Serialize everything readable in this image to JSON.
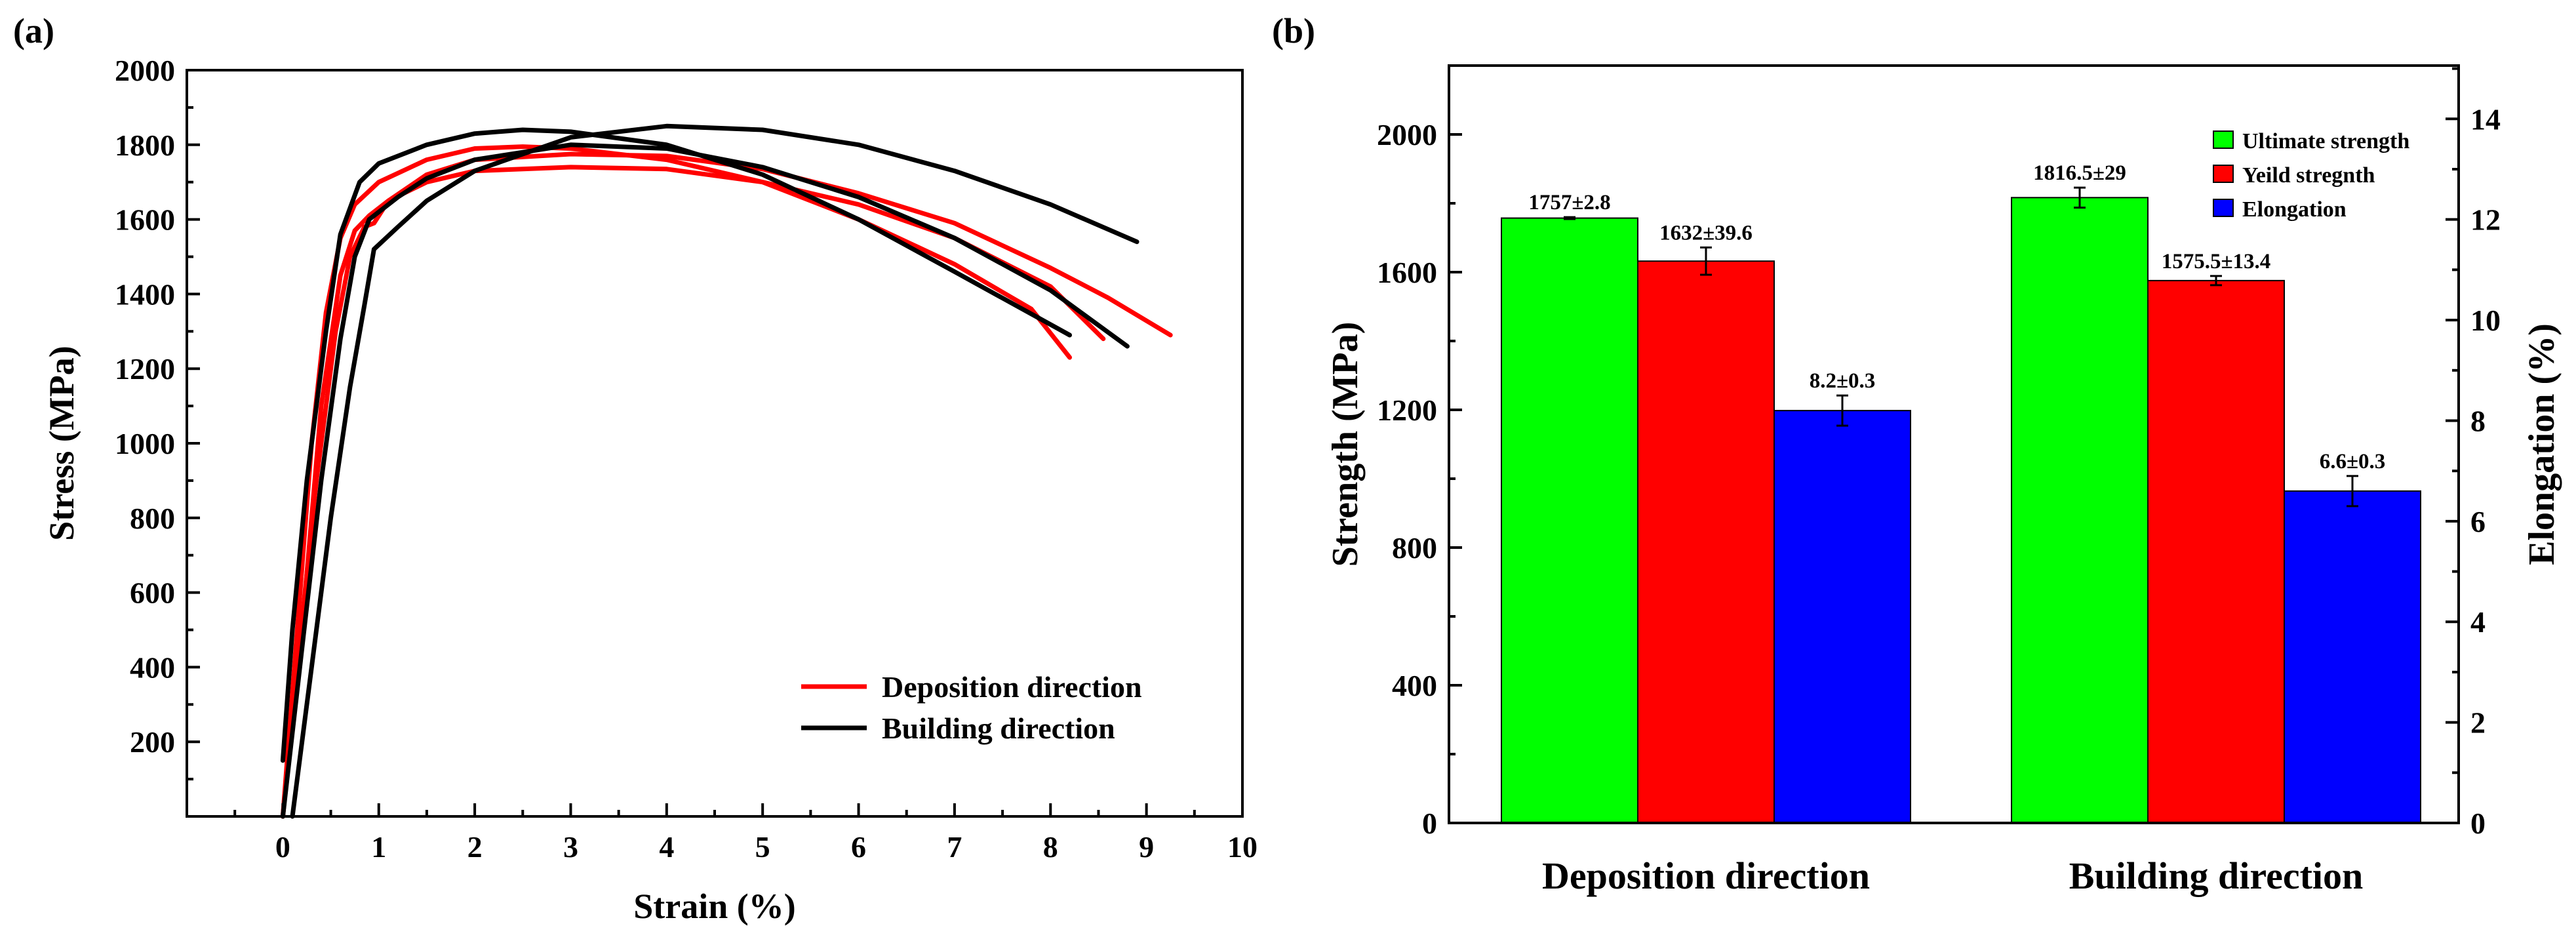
{
  "chart_data": [
    {
      "panel_label": "(a)",
      "type": "line",
      "xlabel": "Strain (%)",
      "ylabel": "Stress (MPa)",
      "xlim": [
        -1,
        10
      ],
      "ylim": [
        0,
        2000
      ],
      "xticks": [
        0,
        1,
        2,
        3,
        4,
        5,
        6,
        7,
        8,
        9,
        10
      ],
      "yticks": [
        200,
        400,
        600,
        800,
        1000,
        1200,
        1400,
        1600,
        1800,
        2000
      ],
      "legend": {
        "position": "bottom-right",
        "entries": [
          {
            "name": "Deposition direction",
            "color": "#ff0000"
          },
          {
            "name": "Building direction",
            "color": "#000000"
          }
        ]
      },
      "series": [
        {
          "name": "Deposition direction",
          "color": "#ff0000",
          "points": [
            [
              0,
              0
            ],
            [
              0.15,
              500
            ],
            [
              0.3,
              1000
            ],
            [
              0.45,
              1350
            ],
            [
              0.6,
              1550
            ],
            [
              0.75,
              1640
            ],
            [
              1.0,
              1700
            ],
            [
              1.5,
              1760
            ],
            [
              2.0,
              1790
            ],
            [
              2.5,
              1795
            ],
            [
              3.0,
              1790
            ],
            [
              4.0,
              1760
            ],
            [
              5.0,
              1700
            ],
            [
              6.0,
              1600
            ],
            [
              7.0,
              1480
            ],
            [
              7.8,
              1360
            ],
            [
              8.2,
              1230
            ]
          ]
        },
        {
          "name": "Deposition direction",
          "color": "#ff0000",
          "points": [
            [
              0,
              0
            ],
            [
              0.2,
              500
            ],
            [
              0.4,
              1100
            ],
            [
              0.6,
              1450
            ],
            [
              0.75,
              1570
            ],
            [
              0.9,
              1610
            ],
            [
              1.1,
              1650
            ],
            [
              1.5,
              1700
            ],
            [
              2.0,
              1730
            ],
            [
              3.0,
              1740
            ],
            [
              4.0,
              1735
            ],
            [
              5.0,
              1700
            ],
            [
              6.0,
              1640
            ],
            [
              7.0,
              1550
            ],
            [
              8.0,
              1420
            ],
            [
              8.55,
              1280
            ]
          ]
        },
        {
          "name": "Deposition direction",
          "color": "#ff0000",
          "points": [
            [
              0,
              0
            ],
            [
              0.15,
              400
            ],
            [
              0.35,
              900
            ],
            [
              0.55,
              1300
            ],
            [
              0.7,
              1500
            ],
            [
              0.85,
              1580
            ],
            [
              0.95,
              1590
            ],
            [
              1.1,
              1650
            ],
            [
              1.5,
              1720
            ],
            [
              2.0,
              1760
            ],
            [
              3.0,
              1775
            ],
            [
              4.0,
              1770
            ],
            [
              5.0,
              1735
            ],
            [
              6.0,
              1670
            ],
            [
              7.0,
              1590
            ],
            [
              8.0,
              1470
            ],
            [
              8.6,
              1390
            ],
            [
              9.25,
              1290
            ]
          ]
        },
        {
          "name": "Building direction",
          "color": "#000000",
          "points": [
            [
              0,
              150
            ],
            [
              0.1,
              500
            ],
            [
              0.25,
              900
            ],
            [
              0.45,
              1300
            ],
            [
              0.6,
              1560
            ],
            [
              0.8,
              1700
            ],
            [
              1.0,
              1750
            ],
            [
              1.5,
              1800
            ],
            [
              2.0,
              1830
            ],
            [
              2.5,
              1840
            ],
            [
              3.0,
              1835
            ],
            [
              4.0,
              1800
            ],
            [
              5.0,
              1720
            ],
            [
              6.0,
              1600
            ],
            [
              7.0,
              1460
            ],
            [
              8.2,
              1290
            ]
          ]
        },
        {
          "name": "Building direction",
          "color": "#000000",
          "points": [
            [
              0.1,
              0
            ],
            [
              0.3,
              400
            ],
            [
              0.5,
              800
            ],
            [
              0.7,
              1150
            ],
            [
              0.85,
              1370
            ],
            [
              0.95,
              1520
            ],
            [
              1.2,
              1580
            ],
            [
              1.5,
              1650
            ],
            [
              2.0,
              1730
            ],
            [
              3.0,
              1820
            ],
            [
              4.0,
              1850
            ],
            [
              5.0,
              1840
            ],
            [
              6.0,
              1800
            ],
            [
              7.0,
              1730
            ],
            [
              8.0,
              1640
            ],
            [
              8.9,
              1540
            ]
          ]
        },
        {
          "name": "Building direction",
          "color": "#000000",
          "points": [
            [
              0,
              0
            ],
            [
              0.2,
              450
            ],
            [
              0.4,
              900
            ],
            [
              0.6,
              1280
            ],
            [
              0.75,
              1500
            ],
            [
              0.9,
              1600
            ],
            [
              1.2,
              1660
            ],
            [
              1.5,
              1710
            ],
            [
              2.0,
              1760
            ],
            [
              3.0,
              1800
            ],
            [
              4.0,
              1790
            ],
            [
              5.0,
              1740
            ],
            [
              6.0,
              1660
            ],
            [
              7.0,
              1550
            ],
            [
              8.0,
              1410
            ],
            [
              8.8,
              1260
            ]
          ]
        }
      ]
    },
    {
      "panel_label": "(b)",
      "type": "bar",
      "categories": [
        "Deposition direction",
        "Building direction"
      ],
      "ylabel": "Strength (MPa)",
      "ylim": [
        0,
        2200
      ],
      "yticks": [
        0,
        400,
        800,
        1200,
        1600,
        2000
      ],
      "y2label": "Elongation (%)",
      "y2lim": [
        0,
        15.06
      ],
      "y2ticks": [
        0,
        2,
        4,
        6,
        8,
        10,
        12,
        14
      ],
      "legend": {
        "position": "top-right"
      },
      "series": [
        {
          "name": "Ultimate strength",
          "color": "#00ff00",
          "axis": "left",
          "values": [
            1757,
            1816.5
          ],
          "errors": [
            2.8,
            29
          ],
          "labels": [
            "1757±2.8",
            "1816.5±29"
          ]
        },
        {
          "name": "Yeild stregnth",
          "color": "#ff0000",
          "axis": "left",
          "values": [
            1632,
            1575.5
          ],
          "errors": [
            39.6,
            13.4
          ],
          "labels": [
            "1632±39.6",
            "1575.5±13.4"
          ]
        },
        {
          "name": "Elongation",
          "color": "#0000ff",
          "axis": "right",
          "values": [
            8.2,
            6.6
          ],
          "errors": [
            0.3,
            0.3
          ],
          "labels": [
            "8.2±0.3",
            "6.6±0.3"
          ]
        }
      ]
    }
  ]
}
